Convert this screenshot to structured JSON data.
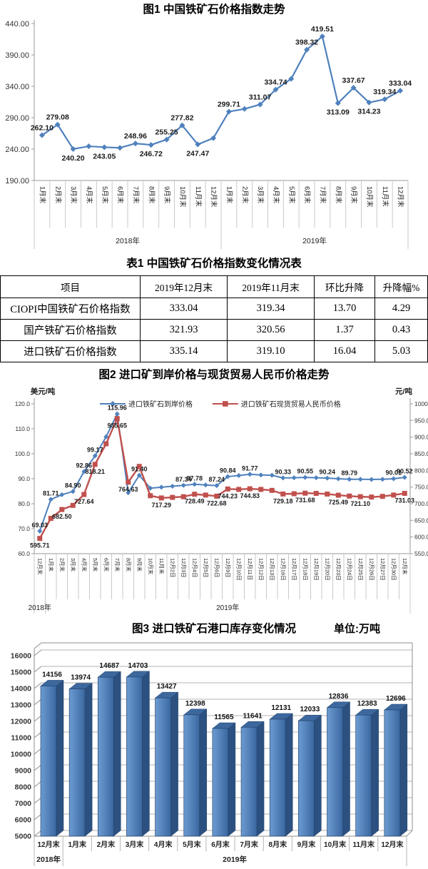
{
  "figures": [
    {
      "title": "图1 中国铁矿石价格指数走势"
    },
    {
      "title": "图2 进口矿到岸价格与现货贸易人民币价格走势",
      "left_unit": "美元/吨",
      "right_unit": "元/吨"
    },
    {
      "title": "图3 进口铁矿石港口库存变化情况",
      "unit_label": "单位:万吨"
    }
  ],
  "table1": {
    "title": "表1 中国铁矿石价格指数变化情况表",
    "headers": [
      "项目",
      "2019年12月末",
      "2019年11月末",
      "环比升降",
      "升降幅%"
    ],
    "rows": [
      [
        "CIOPI中国铁矿石价格指数",
        "333.04",
        "319.34",
        "13.70",
        "4.29"
      ],
      [
        "国产铁矿石价格指数",
        "321.93",
        "320.56",
        "1.37",
        "0.43"
      ],
      [
        "进口铁矿石价格指数",
        "335.14",
        "319.10",
        "16.04",
        "5.03"
      ]
    ]
  },
  "colors": {
    "line_blue": "#4F81BD",
    "line_red": "#C0504D",
    "axis_gray": "#9a9a9a",
    "separator_gray": "#c9c9c9",
    "grid3d": "#b3b3b3",
    "wall3d": "#8c8c8c",
    "bar_front": "#4A7CB8",
    "bar_front_light": "#6C9BD2",
    "bar_front_dark": "#3A679F",
    "bar_side": "#2C5180",
    "bar_top": "#3D689E"
  },
  "chart_data": [
    {
      "type": "line",
      "title": "图1 中国铁矿石价格指数走势",
      "ylim": [
        190,
        440
      ],
      "yticks": [
        "440.00",
        "390.00",
        "340.00",
        "290.00",
        "240.00",
        "190.00"
      ],
      "grid": false,
      "categories": [
        "1月末",
        "2月末",
        "3月末",
        "4月末",
        "5月末",
        "6月末",
        "7月末",
        "8月末",
        "9月末",
        "10月末",
        "11月末",
        "12月末",
        "1月末",
        "2月末",
        "3月末",
        "4月末",
        "5月末",
        "6月末",
        "7月末",
        "8月末",
        "9月末",
        "10月末",
        "11月末",
        "12月末"
      ],
      "year_groups": [
        {
          "label": "2018年",
          "span": 12
        },
        {
          "label": "2019年",
          "span": 12
        }
      ],
      "series": [
        {
          "name": "中国铁矿石价格指数",
          "values": [
            262.1,
            279.08,
            240.2,
            244.5,
            243.05,
            242.0,
            248.96,
            246.72,
            255.25,
            277.82,
            247.47,
            257.5,
            299.71,
            304.0,
            311.07,
            334.74,
            352.0,
            398.32,
            419.51,
            313.09,
            337.67,
            314.23,
            319.34,
            333.04
          ],
          "labels": [
            "262.10",
            "279.08",
            "240.20",
            null,
            "243.05",
            null,
            "248.96",
            "246.72",
            "255.25",
            "277.82",
            "247.47",
            null,
            "299.71",
            null,
            "311.07",
            "334.74",
            null,
            "398.32",
            "419.51",
            "313.09",
            "337.67",
            "314.23",
            "319.34",
            "333.04"
          ],
          "label_pos": [
            "a",
            "a",
            "b",
            null,
            "b",
            null,
            "a",
            "b",
            "a",
            "a",
            "b",
            null,
            "a",
            null,
            "a",
            "a",
            null,
            "a",
            "a",
            "b",
            "a",
            "b",
            "a",
            "a"
          ]
        }
      ]
    },
    {
      "type": "line-dual-axis",
      "title": "图2 进口矿到岸价格与现货贸易人民币价格走势",
      "left_ylim": [
        60,
        120
      ],
      "right_ylim": [
        550,
        1000
      ],
      "left_yticks": [
        "120.0",
        "110.0",
        "100.0",
        "90.0",
        "80.0",
        "70.0",
        "60.0"
      ],
      "right_yticks": [
        "1000.0",
        "950.0",
        "900.0",
        "850.0",
        "800.0",
        "750.0",
        "700.0",
        "650.0",
        "600.0",
        "550.0"
      ],
      "grid": false,
      "categories": [
        "12月末",
        "1月末",
        "2月末",
        "3月末",
        "4月末",
        "5月末",
        "6月末",
        "7月末",
        "8月末",
        "9月末",
        "10月末",
        "11月末",
        "12月2日",
        "12月3日",
        "12月4日",
        "12月5日",
        "12月6日",
        "12月9日",
        "12月10日",
        "12月11日",
        "12月12日",
        "12月13日",
        "12月16日",
        "12月17日",
        "12月18日",
        "12月19日",
        "12月20日",
        "12月23日",
        "12月24日",
        "12月25日",
        "12月26日",
        "12月27日",
        "12月30日",
        "12月末"
      ],
      "year_groups": [
        {
          "label": "2018年",
          "span": 1
        },
        {
          "label": "2019年",
          "span": 33
        }
      ],
      "series": [
        {
          "name": "进口铁矿石到岸价格",
          "axis": "left",
          "marker": "diamond",
          "color": "#4F81BD",
          "values": [
            69.03,
            81.71,
            83.6,
            84.9,
            92.86,
            99.17,
            106.8,
            115.96,
            84.4,
            91.4,
            86.2,
            86.6,
            87.0,
            87.34,
            87.78,
            87.5,
            87.24,
            90.84,
            91.3,
            91.77,
            91.5,
            91.4,
            90.33,
            90.4,
            90.55,
            90.4,
            90.24,
            90.0,
            89.79,
            89.8,
            89.7,
            89.8,
            90.01,
            90.52
          ],
          "labels": [
            "69.03",
            "81.71",
            null,
            "84.90",
            "92.86",
            "99.17",
            null,
            "115.96",
            null,
            "91.40",
            null,
            null,
            null,
            "87.34",
            "87.78",
            null,
            "87.24",
            "90.84",
            null,
            "91.77",
            null,
            null,
            "90.33",
            null,
            "90.55",
            null,
            "90.24",
            null,
            "89.79",
            null,
            null,
            null,
            "90.01",
            "90.52"
          ],
          "label_pos": [
            "a",
            "a",
            null,
            "a",
            "a",
            "a",
            null,
            "a",
            null,
            "a",
            null,
            null,
            null,
            "a",
            "a",
            null,
            "a",
            "a",
            null,
            "a",
            null,
            null,
            "a",
            null,
            "a",
            null,
            "a",
            null,
            "a",
            null,
            null,
            null,
            "a",
            "a"
          ]
        },
        {
          "name": "进口铁矿石现货贸易人民币价格",
          "axis": "right",
          "marker": "square",
          "color": "#C0504D",
          "values": [
            595.71,
            656,
            682.5,
            695,
            727.64,
            818.21,
            880,
            955.65,
            764.63,
            812,
            724,
            717.29,
            719,
            721,
            728.49,
            726,
            722.68,
            744.23,
            743,
            744.83,
            743,
            740,
            729.18,
            730,
            731.68,
            731,
            729,
            725.49,
            723,
            721.1,
            720,
            722,
            726,
            731.03
          ],
          "labels": [
            "595.71",
            null,
            "682.50",
            null,
            "727.64",
            "818.21",
            null,
            "955.65",
            "764.63",
            null,
            null,
            "717.29",
            null,
            null,
            "728.49",
            null,
            "722.68",
            "744.23",
            null,
            "744.83",
            null,
            null,
            "729.18",
            null,
            "731.68",
            null,
            null,
            "725.49",
            null,
            "721.10",
            null,
            null,
            null,
            "731.03"
          ],
          "label_pos": [
            "b",
            null,
            "b",
            null,
            "b",
            "b",
            null,
            "b",
            "b",
            null,
            null,
            "b",
            null,
            null,
            "b",
            null,
            "b",
            "b",
            null,
            "b",
            null,
            null,
            "b",
            null,
            "b",
            null,
            null,
            "b",
            null,
            "b",
            null,
            null,
            null,
            "b"
          ]
        }
      ],
      "legend": [
        {
          "label": "进口铁矿石到岸价格",
          "color": "#4F81BD",
          "marker": "diamond"
        },
        {
          "label": "进口铁矿石现货贸易人民币价格",
          "color": "#C0504D",
          "marker": "square"
        }
      ]
    },
    {
      "type": "bar",
      "variant": "3d-column",
      "title": "图3 进口铁矿石港口库存变化情况",
      "unit": "万吨",
      "ylim": [
        5000,
        16000
      ],
      "yticks": [
        "16000",
        "15000",
        "14000",
        "13000",
        "12000",
        "11000",
        "10000",
        "9000",
        "8000",
        "7000",
        "6000",
        "5000"
      ],
      "grid": true,
      "categories": [
        "12月末",
        "1月末",
        "2月末",
        "3月末",
        "4月末",
        "5月末",
        "6月末",
        "7月末",
        "8月末",
        "9月末",
        "10月末",
        "11月末",
        "12月末"
      ],
      "year_groups": [
        {
          "label": "2018年",
          "span": 1
        },
        {
          "label": "2019年",
          "span": 12
        }
      ],
      "values": [
        14156,
        13974,
        14687,
        14703,
        13427,
        12398,
        11565,
        11641,
        12131,
        12033,
        12836,
        12383,
        12696
      ],
      "value_labels": [
        "14156",
        "13974",
        "14687",
        "14703",
        "13427",
        "12398",
        "11565",
        "11641",
        "12131",
        "12033",
        "12836",
        "12383",
        "12696"
      ]
    }
  ]
}
